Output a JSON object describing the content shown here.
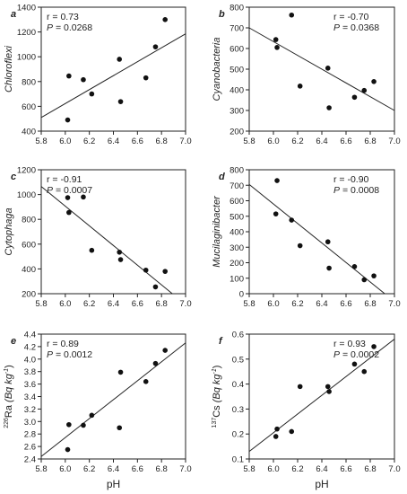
{
  "chart_data": [
    {
      "type": "scatter",
      "panel_letter": "a",
      "ylabel": "Chloroflexi",
      "xlabel": "",
      "xlim": [
        5.8,
        7.0
      ],
      "ylim": [
        400,
        1400
      ],
      "xticks": [
        "5.8",
        "6.0",
        "6.2",
        "6.4",
        "6.6",
        "6.8",
        "7.0"
      ],
      "yticks": [
        "400",
        "600",
        "800",
        "1000",
        "1200",
        "1400"
      ],
      "r_text": "r = 0.73",
      "p_text": "= 0.0268",
      "points": [
        [
          6.02,
          490
        ],
        [
          6.03,
          845
        ],
        [
          6.15,
          815
        ],
        [
          6.22,
          700
        ],
        [
          6.45,
          980
        ],
        [
          6.46,
          638
        ],
        [
          6.67,
          830
        ],
        [
          6.75,
          1080
        ],
        [
          6.83,
          1300
        ]
      ],
      "fit_line": [
        [
          5.8,
          510
        ],
        [
          7.0,
          1185
        ]
      ]
    },
    {
      "type": "scatter",
      "panel_letter": "b",
      "ylabel": "Cyanobacteria",
      "xlabel": "",
      "xlim": [
        5.8,
        7.0
      ],
      "ylim": [
        200,
        800
      ],
      "xticks": [
        "5.8",
        "6.0",
        "6.2",
        "6.4",
        "6.6",
        "6.8",
        "7.0"
      ],
      "yticks": [
        "200",
        "300",
        "400",
        "500",
        "600",
        "700",
        "800"
      ],
      "r_text": "r = -0.70",
      "p_text": "= 0.0368",
      "points": [
        [
          6.02,
          643
        ],
        [
          6.03,
          605
        ],
        [
          6.15,
          762
        ],
        [
          6.22,
          418
        ],
        [
          6.45,
          505
        ],
        [
          6.46,
          313
        ],
        [
          6.67,
          364
        ],
        [
          6.75,
          397
        ],
        [
          6.83,
          440
        ]
      ],
      "fit_line": [
        [
          5.8,
          700
        ],
        [
          7.0,
          300
        ]
      ]
    },
    {
      "type": "scatter",
      "panel_letter": "c",
      "ylabel": "Cytophaga",
      "xlabel": "",
      "xlim": [
        5.8,
        7.0
      ],
      "ylim": [
        200,
        1200
      ],
      "xticks": [
        "5.8",
        "6.0",
        "6.2",
        "6.4",
        "6.6",
        "6.8",
        "7.0"
      ],
      "yticks": [
        "200",
        "400",
        "600",
        "800",
        "1000",
        "1200"
      ],
      "r_text": "r = -0.91",
      "p_text": "= 0.0007",
      "points": [
        [
          6.02,
          975
        ],
        [
          6.03,
          855
        ],
        [
          6.15,
          980
        ],
        [
          6.22,
          550
        ],
        [
          6.45,
          535
        ],
        [
          6.46,
          475
        ],
        [
          6.67,
          390
        ],
        [
          6.75,
          255
        ],
        [
          6.83,
          380
        ]
      ],
      "fit_line": [
        [
          5.8,
          1065
        ],
        [
          6.89,
          200
        ]
      ]
    },
    {
      "type": "scatter",
      "panel_letter": "d",
      "ylabel": "Mucilaginibacter",
      "xlabel": "",
      "xlim": [
        5.8,
        7.0
      ],
      "ylim": [
        0,
        800
      ],
      "xticks": [
        "5.8",
        "6.0",
        "6.2",
        "6.4",
        "6.6",
        "6.8",
        "7.0"
      ],
      "yticks": [
        "0",
        "100",
        "200",
        "300",
        "400",
        "500",
        "600",
        "700",
        "800"
      ],
      "r_text": "r = -0.90",
      "p_text": "= 0.0008",
      "points": [
        [
          6.02,
          515
        ],
        [
          6.03,
          730
        ],
        [
          6.15,
          475
        ],
        [
          6.22,
          310
        ],
        [
          6.45,
          335
        ],
        [
          6.46,
          165
        ],
        [
          6.67,
          175
        ],
        [
          6.75,
          90
        ],
        [
          6.83,
          115
        ]
      ],
      "fit_line": [
        [
          5.8,
          705
        ],
        [
          6.92,
          0
        ]
      ]
    },
    {
      "type": "scatter",
      "panel_letter": "e",
      "ylabel_sup": "226",
      "ylabel_main": "Ra",
      "ylabel_unit": "(Bq kg",
      "ylabel_unit_sup": "-1",
      "ylabel_close": ")",
      "xlabel": "pH",
      "xlim": [
        5.8,
        7.0
      ],
      "ylim": [
        2.4,
        4.4
      ],
      "xticks": [
        "5.8",
        "6.0",
        "6.2",
        "6.4",
        "6.6",
        "6.8",
        "7.0"
      ],
      "yticks": [
        "2.4",
        "2.6",
        "2.8",
        "3.0",
        "3.2",
        "3.4",
        "3.6",
        "3.8",
        "4.0",
        "4.2",
        "4.4"
      ],
      "r_text": "r = 0.89",
      "p_text": "= 0.0012",
      "points": [
        [
          6.02,
          2.55
        ],
        [
          6.03,
          2.95
        ],
        [
          6.15,
          2.94
        ],
        [
          6.22,
          3.1
        ],
        [
          6.45,
          2.9
        ],
        [
          6.46,
          3.79
        ],
        [
          6.67,
          3.64
        ],
        [
          6.75,
          3.93
        ],
        [
          6.83,
          4.14
        ]
      ],
      "fit_line": [
        [
          5.8,
          2.44
        ],
        [
          7.0,
          4.26
        ]
      ]
    },
    {
      "type": "scatter",
      "panel_letter": "f",
      "ylabel_sup": "137",
      "ylabel_main": "Cs",
      "ylabel_unit": "(Bq kg",
      "ylabel_unit_sup": "-1",
      "ylabel_close": ")",
      "xlabel": "pH",
      "xlim": [
        5.8,
        7.0
      ],
      "ylim": [
        0.1,
        0.6
      ],
      "xticks": [
        "5.8",
        "6.0",
        "6.2",
        "6.4",
        "6.6",
        "6.8",
        "7.0"
      ],
      "yticks": [
        "0.1",
        "0.2",
        "0.3",
        "0.4",
        "0.5",
        "0.6"
      ],
      "r_text": "r = 0.93",
      "p_text": "= 0.0002",
      "points": [
        [
          6.02,
          0.19
        ],
        [
          6.03,
          0.22
        ],
        [
          6.15,
          0.21
        ],
        [
          6.22,
          0.39
        ],
        [
          6.45,
          0.39
        ],
        [
          6.46,
          0.37
        ],
        [
          6.67,
          0.48
        ],
        [
          6.75,
          0.45
        ],
        [
          6.83,
          0.55
        ]
      ],
      "fit_line": [
        [
          5.8,
          0.13
        ],
        [
          7.0,
          0.58
        ]
      ]
    }
  ],
  "p_symbol": "P"
}
